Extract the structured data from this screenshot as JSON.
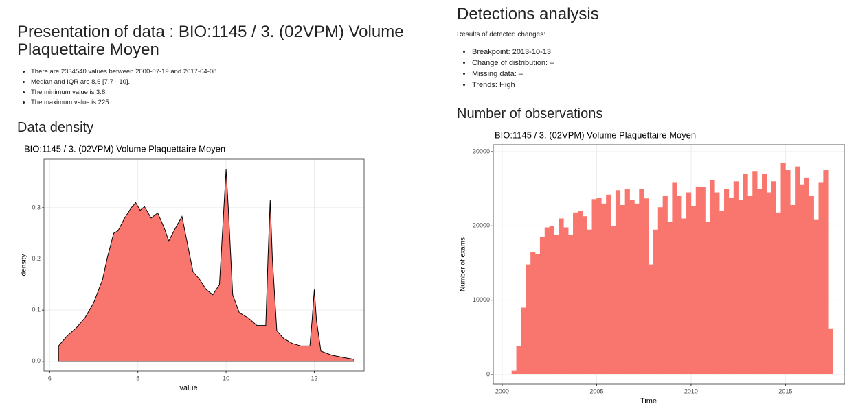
{
  "report": {
    "title": "Presentation of data : BIO:1145 / 3. (02VPM) Volume Plaquettaire Moyen",
    "summary": [
      "There are 2334540 values between 2000-07-19 and 2017-04-08.",
      "Median and IQR are 8.6 [7.7 - 10].",
      "The minimum value is 3.8.",
      "The maximum value is 225."
    ],
    "density_heading": "Data density"
  },
  "detections": {
    "title": "Detections analysis",
    "intro": "Results of detected changes:",
    "items": [
      "Breakpoint: 2013-10-13",
      "Change of distribution: –",
      "Missing data: –",
      "Trends: High"
    ],
    "observations_heading": "Number of observations"
  },
  "chart_data": [
    {
      "type": "area",
      "title": "BIO:1145 /  3. (02VPM) Volume Plaquettaire Moyen",
      "xlabel": "value",
      "ylabel": "density",
      "color": "#f8766d",
      "grid": true,
      "x": [
        6.2,
        6.4,
        6.6,
        6.8,
        7.0,
        7.2,
        7.3,
        7.45,
        7.55,
        7.7,
        7.85,
        7.95,
        8.05,
        8.15,
        8.3,
        8.45,
        8.6,
        8.7,
        8.85,
        9.0,
        9.1,
        9.25,
        9.4,
        9.55,
        9.7,
        9.85,
        9.95,
        10.0,
        10.05,
        10.15,
        10.3,
        10.5,
        10.7,
        10.9,
        10.95,
        11.0,
        11.05,
        11.15,
        11.3,
        11.5,
        11.7,
        11.9,
        11.95,
        12.0,
        12.05,
        12.15,
        12.4,
        12.7,
        12.9
      ],
      "values": [
        0.03,
        0.05,
        0.065,
        0.085,
        0.115,
        0.16,
        0.2,
        0.25,
        0.255,
        0.28,
        0.3,
        0.31,
        0.295,
        0.302,
        0.28,
        0.29,
        0.26,
        0.235,
        0.26,
        0.283,
        0.24,
        0.175,
        0.16,
        0.14,
        0.13,
        0.15,
        0.3,
        0.375,
        0.3,
        0.13,
        0.095,
        0.085,
        0.07,
        0.07,
        0.2,
        0.315,
        0.2,
        0.06,
        0.045,
        0.035,
        0.03,
        0.03,
        0.08,
        0.14,
        0.08,
        0.02,
        0.012,
        0.007,
        0.004
      ],
      "xlim": [
        5.87,
        13.13
      ],
      "ylim": [
        -0.019,
        0.395
      ],
      "xticks": [
        6,
        8,
        10,
        12
      ],
      "yticks": [
        {
          "value": 0,
          "label": "0.0"
        },
        0.1,
        0.2,
        0.3
      ]
    },
    {
      "type": "histogram",
      "title": "BIO:1145 /  3. (02VPM) Volume Plaquettaire Moyen",
      "xlabel": "Time",
      "ylabel": "Number of exams",
      "color": "#f8766d",
      "grid": true,
      "bins": [
        2000.5,
        2000.75,
        2001.0,
        2001.25,
        2001.5,
        2001.75,
        2002.0,
        2002.25,
        2002.5,
        2002.75,
        2003.0,
        2003.25,
        2003.5,
        2003.75,
        2004.0,
        2004.25,
        2004.5,
        2004.75,
        2005.0,
        2005.25,
        2005.5,
        2005.75,
        2006.0,
        2006.25,
        2006.5,
        2006.75,
        2007.0,
        2007.25,
        2007.5,
        2007.75,
        2008.0,
        2008.25,
        2008.5,
        2008.75,
        2009.0,
        2009.25,
        2009.5,
        2009.75,
        2010.0,
        2010.25,
        2010.5,
        2010.75,
        2011.0,
        2011.25,
        2011.5,
        2011.75,
        2012.0,
        2012.25,
        2012.5,
        2012.75,
        2013.0,
        2013.25,
        2013.5,
        2013.75,
        2014.0,
        2014.25,
        2014.5,
        2014.75,
        2015.0,
        2015.25,
        2015.5,
        2015.75,
        2016.0,
        2016.25,
        2016.5,
        2016.75,
        2017.0,
        2017.25,
        2017.5
      ],
      "values": [
        500,
        3800,
        9000,
        14800,
        16500,
        16200,
        18500,
        19800,
        20000,
        18800,
        21000,
        19800,
        18800,
        21800,
        22000,
        21300,
        19500,
        23600,
        23800,
        23000,
        24200,
        20000,
        24800,
        22800,
        25000,
        23500,
        23000,
        25000,
        23700,
        14800,
        19500,
        22500,
        24000,
        20500,
        25800,
        24000,
        21000,
        24500,
        22700,
        25300,
        25200,
        20500,
        26200,
        24500,
        22000,
        25000,
        23800,
        26000,
        23500,
        27000,
        24000,
        27300,
        25000,
        27000,
        24500,
        26000,
        21800,
        28500,
        27500,
        22800,
        28000,
        25500,
        26500,
        24000,
        20800,
        25800,
        27500,
        6200
      ],
      "xlim": [
        1999.53,
        2018.15
      ],
      "ylim": [
        -1290,
        30920
      ],
      "xticks": [
        2000,
        2005,
        2010,
        2015
      ],
      "yticks": [
        0,
        10000,
        20000,
        30000
      ]
    }
  ]
}
